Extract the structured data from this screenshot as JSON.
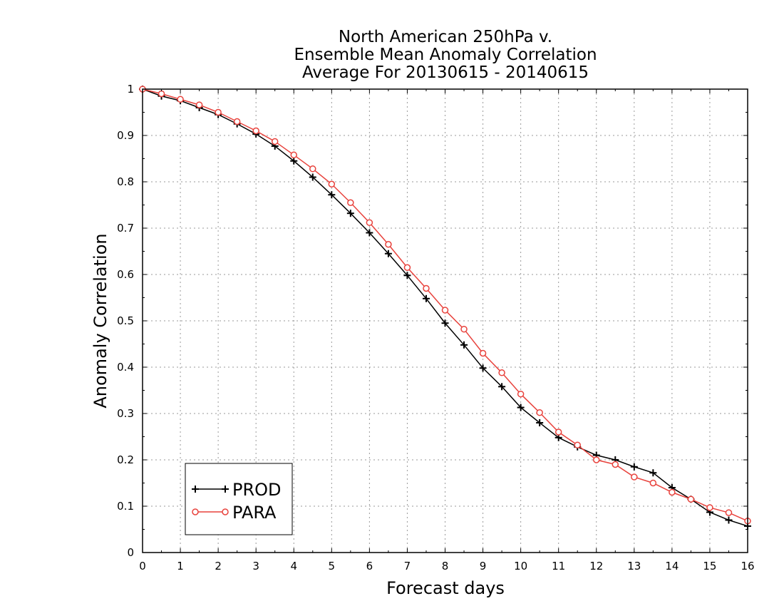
{
  "chart_data": {
    "type": "line",
    "title_lines": [
      "North American 250hPa v.",
      "Ensemble Mean Anomaly Correlation",
      "Average For 20130615 - 20140615"
    ],
    "xlabel": "Forecast days",
    "ylabel": "Anomaly Correlation",
    "xlim": [
      0,
      16
    ],
    "ylim": [
      0,
      1
    ],
    "xticks": [
      "0",
      "1",
      "2",
      "3",
      "4",
      "5",
      "6",
      "7",
      "8",
      "9",
      "10",
      "11",
      "12",
      "13",
      "14",
      "15",
      "16"
    ],
    "yticks": [
      "0",
      "0.1",
      "0.2",
      "0.3",
      "0.4",
      "0.5",
      "0.6",
      "0.7",
      "0.8",
      "0.9",
      "1"
    ],
    "grid": true,
    "legend_position": "bottom-left",
    "x": [
      0,
      0.5,
      1,
      1.5,
      2,
      2.5,
      3,
      3.5,
      4,
      4.5,
      5,
      5.5,
      6,
      6.5,
      7,
      7.5,
      8,
      8.5,
      9,
      9.5,
      10,
      10.5,
      11,
      11.5,
      12,
      12.5,
      13,
      13.5,
      14,
      14.5,
      15,
      15.5,
      16
    ],
    "series": [
      {
        "name": "PROD",
        "color": "#000000",
        "marker": "plus",
        "values": [
          1.0,
          0.985,
          0.975,
          0.96,
          0.945,
          0.925,
          0.903,
          0.877,
          0.845,
          0.81,
          0.772,
          0.732,
          0.69,
          0.645,
          0.598,
          0.548,
          0.495,
          0.448,
          0.398,
          0.358,
          0.313,
          0.28,
          0.248,
          0.228,
          0.21,
          0.2,
          0.185,
          0.172,
          0.14,
          0.115,
          0.087,
          0.07,
          0.057
        ]
      },
      {
        "name": "PARA",
        "color": "#e8423c",
        "marker": "circle",
        "values": [
          1.0,
          0.99,
          0.978,
          0.966,
          0.95,
          0.93,
          0.91,
          0.887,
          0.858,
          0.828,
          0.795,
          0.755,
          0.712,
          0.665,
          0.615,
          0.57,
          0.523,
          0.482,
          0.43,
          0.388,
          0.342,
          0.302,
          0.26,
          0.232,
          0.2,
          0.19,
          0.163,
          0.15,
          0.13,
          0.115,
          0.097,
          0.086,
          0.068
        ]
      }
    ]
  }
}
